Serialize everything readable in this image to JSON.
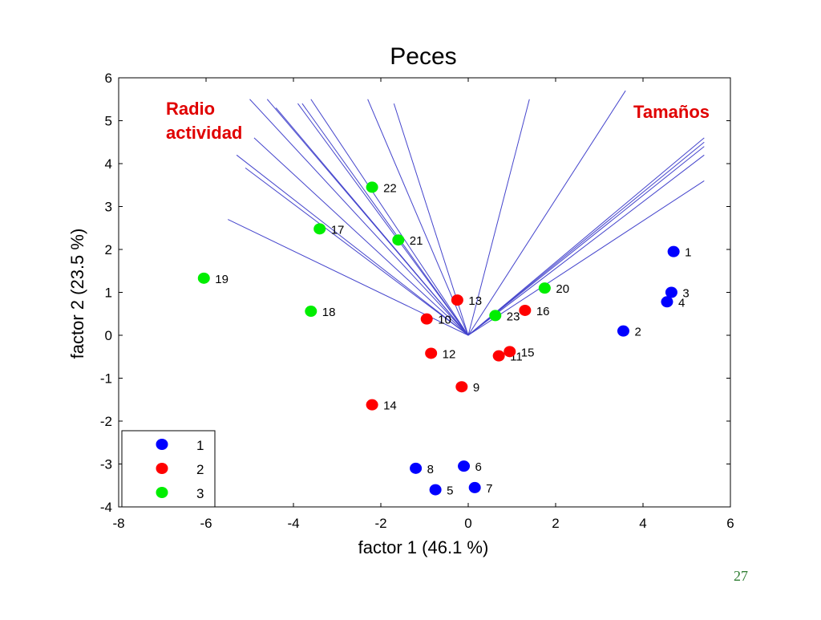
{
  "slide": {
    "page_number": "27"
  },
  "chart_data": {
    "type": "scatter",
    "title": "Peces",
    "xlabel": "factor  1  (46.1 %)",
    "ylabel": "factor  2  (23.5 %)",
    "xlim": [
      -8,
      6
    ],
    "ylim": [
      -4,
      6
    ],
    "xticks": [
      -8,
      -6,
      -4,
      -2,
      0,
      2,
      4,
      6
    ],
    "yticks": [
      -4,
      -3,
      -2,
      -1,
      0,
      1,
      2,
      3,
      4,
      5,
      6
    ],
    "grid": false,
    "colors": {
      "1": "#0000ff",
      "2": "#ff0000",
      "3": "#00ee00",
      "vectors": "#4444cc",
      "annotation": "#e00000"
    },
    "legend": {
      "placement": "bottom-left",
      "entries": [
        "1",
        "2",
        "3"
      ]
    },
    "annotations": [
      {
        "text_lines": [
          "Radio",
          "actividad"
        ]
      },
      {
        "text_lines": [
          "Tamaños"
        ]
      }
    ],
    "vectors": [
      {
        "x": -5.3,
        "y": 4.2
      },
      {
        "x": -5.1,
        "y": 3.9
      },
      {
        "x": -4.9,
        "y": 4.6
      },
      {
        "x": -5.0,
        "y": 5.5
      },
      {
        "x": -4.6,
        "y": 5.5
      },
      {
        "x": -4.4,
        "y": 5.3
      },
      {
        "x": -3.9,
        "y": 5.4
      },
      {
        "x": -3.8,
        "y": 5.4
      },
      {
        "x": -3.6,
        "y": 5.5
      },
      {
        "x": -5.5,
        "y": 2.7
      },
      {
        "x": -2.3,
        "y": 5.5
      },
      {
        "x": -1.7,
        "y": 5.4
      },
      {
        "x": 1.4,
        "y": 5.5
      },
      {
        "x": 3.6,
        "y": 5.7
      },
      {
        "x": 5.4,
        "y": 4.6
      },
      {
        "x": 5.4,
        "y": 4.5
      },
      {
        "x": 5.4,
        "y": 4.4
      },
      {
        "x": 5.4,
        "y": 4.2
      },
      {
        "x": 5.4,
        "y": 3.6
      }
    ],
    "series": [
      {
        "name": "1",
        "points": [
          {
            "label": "1",
            "x": 4.7,
            "y": 1.95
          },
          {
            "label": "2",
            "x": 3.55,
            "y": 0.1
          },
          {
            "label": "3",
            "x": 4.65,
            "y": 1.0
          },
          {
            "label": "4",
            "x": 4.55,
            "y": 0.78
          },
          {
            "label": "5",
            "x": -0.75,
            "y": -3.6
          },
          {
            "label": "6",
            "x": -0.1,
            "y": -3.05
          },
          {
            "label": "7",
            "x": 0.15,
            "y": -3.55
          },
          {
            "label": "8",
            "x": -1.2,
            "y": -3.1
          }
        ]
      },
      {
        "name": "2",
        "points": [
          {
            "label": "9",
            "x": -0.15,
            "y": -1.2
          },
          {
            "label": "10",
            "x": -0.95,
            "y": 0.38
          },
          {
            "label": "11",
            "x": 0.7,
            "y": -0.48
          },
          {
            "label": "12",
            "x": -0.85,
            "y": -0.42
          },
          {
            "label": "13",
            "x": -0.25,
            "y": 0.82
          },
          {
            "label": "14",
            "x": -2.2,
            "y": -1.62
          },
          {
            "label": "15",
            "x": 0.95,
            "y": -0.38
          },
          {
            "label": "16",
            "x": 1.3,
            "y": 0.58
          }
        ]
      },
      {
        "name": "3",
        "points": [
          {
            "label": "17",
            "x": -3.4,
            "y": 2.48
          },
          {
            "label": "18",
            "x": -3.6,
            "y": 0.56
          },
          {
            "label": "19",
            "x": -6.05,
            "y": 1.33
          },
          {
            "label": "20",
            "x": 1.75,
            "y": 1.1
          },
          {
            "label": "21",
            "x": -1.6,
            "y": 2.22
          },
          {
            "label": "22",
            "x": -2.2,
            "y": 3.45
          },
          {
            "label": "23",
            "x": 0.62,
            "y": 0.46
          }
        ]
      }
    ]
  }
}
